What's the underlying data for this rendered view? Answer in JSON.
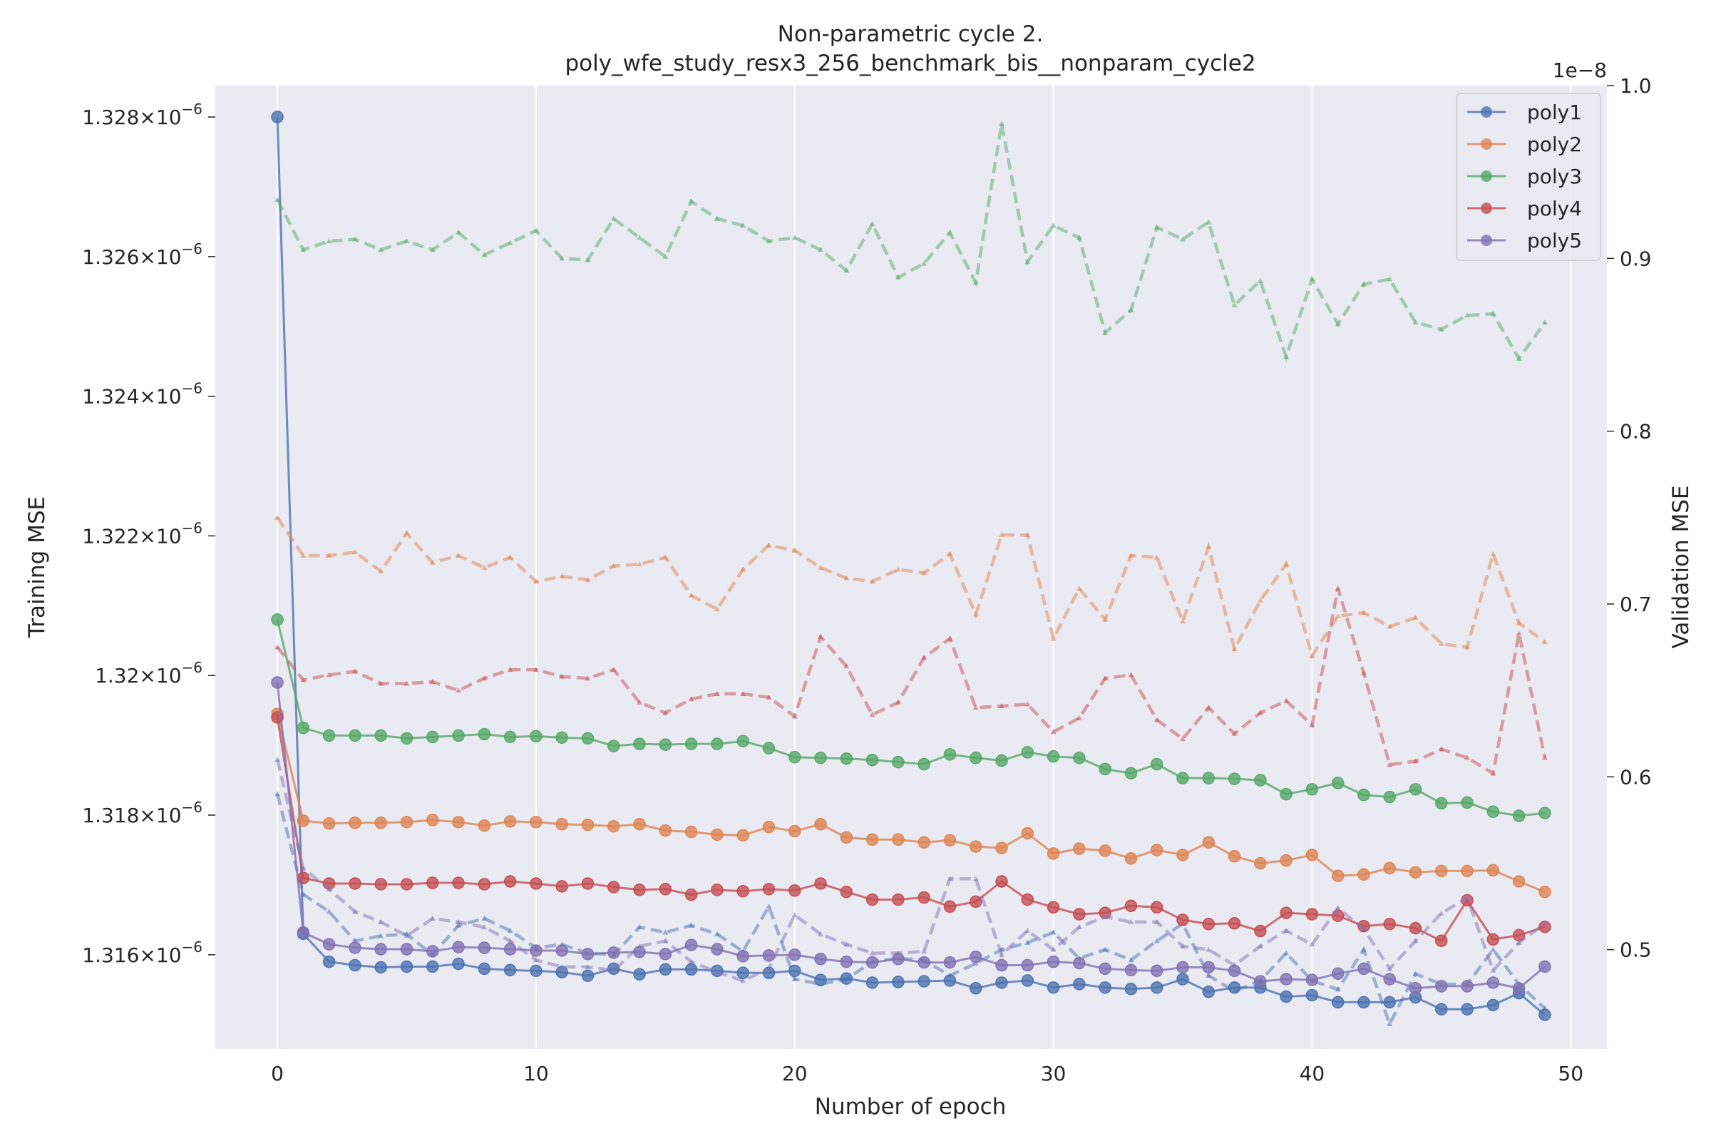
{
  "chart_data": {
    "type": "line",
    "title": "Non-parametric cycle 2.",
    "subtitle": "poly_wfe_study_resx3_256_benchmark_bis__nonparam_cycle2",
    "xlabel": "Number of epoch",
    "ylabel": "Training MSE",
    "y2label": "Validation MSE",
    "y2_offset_text": "1e−8",
    "xlim": [
      -2.4,
      51.4
    ],
    "ylim": [
      1.31465e-06,
      1.32845e-06
    ],
    "y2lim": [
      0.4425,
      1.0
    ],
    "grid": true,
    "legend_position": "top-right",
    "x_ticks": [
      0,
      10,
      20,
      30,
      40,
      50
    ],
    "x_tick_labels": [
      "0",
      "10",
      "20",
      "30",
      "40",
      "50"
    ],
    "y_ticks": [
      {
        "value": 1.316e-06,
        "mant": "1.316",
        "exp": "−6"
      },
      {
        "value": 1.318e-06,
        "mant": "1.318",
        "exp": "−6"
      },
      {
        "value": 1.32e-06,
        "mant": "1.32",
        "exp": "−6"
      },
      {
        "value": 1.322e-06,
        "mant": "1.322",
        "exp": "−6"
      },
      {
        "value": 1.324e-06,
        "mant": "1.324",
        "exp": "−6"
      },
      {
        "value": 1.326e-06,
        "mant": "1.326",
        "exp": "−6"
      },
      {
        "value": 1.328e-06,
        "mant": "1.328",
        "exp": "−6"
      }
    ],
    "y_tick_times": "×10",
    "y2_ticks": [
      0.5,
      0.6,
      0.7,
      0.8,
      0.9,
      1.0
    ],
    "y2_tick_labels": [
      "0.5",
      "0.6",
      "0.7",
      "0.8",
      "0.9",
      "1.0"
    ],
    "x": [
      0,
      1,
      2,
      3,
      4,
      5,
      6,
      7,
      8,
      9,
      10,
      11,
      12,
      13,
      14,
      15,
      16,
      17,
      18,
      19,
      20,
      21,
      22,
      23,
      24,
      25,
      26,
      27,
      28,
      29,
      30,
      31,
      32,
      33,
      34,
      35,
      36,
      37,
      38,
      39,
      40,
      41,
      42,
      43,
      44,
      45,
      46,
      47,
      48,
      49
    ],
    "series": [
      {
        "name": "poly1",
        "color": "#4c72b0",
        "train": [
          1.328,
          1.3163,
          1.3159,
          1.31585,
          1.31582,
          1.31583,
          1.31583,
          1.31587,
          1.3158,
          1.31578,
          1.31577,
          1.31575,
          1.3157,
          1.3158,
          1.31572,
          1.31579,
          1.31579,
          1.31577,
          1.31574,
          1.31574,
          1.31577,
          1.31564,
          1.31566,
          1.3156,
          1.31561,
          1.31562,
          1.31563,
          1.31552,
          1.3156,
          1.31563,
          1.31553,
          1.31558,
          1.31553,
          1.31551,
          1.31553,
          1.31565,
          1.31547,
          1.31553,
          1.31553,
          1.3154,
          1.31542,
          1.31532,
          1.31532,
          1.31532,
          1.31539,
          1.31522,
          1.31522,
          1.31528,
          1.31545,
          1.31514
        ],
        "val": [
          0.59,
          0.532,
          0.522,
          0.505,
          0.508,
          0.509,
          0.497,
          0.514,
          0.518,
          0.511,
          0.501,
          0.503,
          0.498,
          0.497,
          0.513,
          0.51,
          0.514,
          0.509,
          0.499,
          0.525,
          0.483,
          0.48,
          0.483,
          0.493,
          0.495,
          0.494,
          0.485,
          0.492,
          0.5,
          0.504,
          0.51,
          0.495,
          0.5,
          0.494,
          0.505,
          0.515,
          0.485,
          0.476,
          0.482,
          0.498,
          0.482,
          0.477,
          0.5,
          0.457,
          0.486,
          0.48,
          0.48,
          0.5,
          0.48,
          0.466
        ]
      },
      {
        "name": "poly2",
        "color": "#dd8452",
        "train": [
          1.31945,
          1.31792,
          1.31788,
          1.31789,
          1.31789,
          1.3179,
          1.31793,
          1.3179,
          1.31785,
          1.31791,
          1.3179,
          1.31787,
          1.31786,
          1.31784,
          1.31787,
          1.31778,
          1.31776,
          1.31772,
          1.31771,
          1.31783,
          1.31777,
          1.31787,
          1.31768,
          1.31765,
          1.31765,
          1.31761,
          1.31764,
          1.31755,
          1.31753,
          1.31774,
          1.31745,
          1.31752,
          1.31749,
          1.31738,
          1.3175,
          1.31743,
          1.31761,
          1.31741,
          1.31731,
          1.31735,
          1.31743,
          1.31713,
          1.31715,
          1.31724,
          1.31718,
          1.3172,
          1.3172,
          1.31721,
          1.31705,
          1.3169
        ],
        "val": [
          0.75,
          0.728,
          0.728,
          0.73,
          0.719,
          0.741,
          0.724,
          0.728,
          0.721,
          0.727,
          0.713,
          0.716,
          0.714,
          0.722,
          0.723,
          0.727,
          0.705,
          0.697,
          0.72,
          0.734,
          0.731,
          0.721,
          0.715,
          0.713,
          0.72,
          0.718,
          0.729,
          0.694,
          0.74,
          0.74,
          0.68,
          0.709,
          0.691,
          0.728,
          0.727,
          0.69,
          0.733,
          0.674,
          0.702,
          0.723,
          0.67,
          0.693,
          0.695,
          0.687,
          0.692,
          0.677,
          0.675,
          0.729,
          0.689,
          0.678
        ]
      },
      {
        "name": "poly3",
        "color": "#55a868",
        "train": [
          1.3208,
          1.31925,
          1.31914,
          1.31914,
          1.31914,
          1.3191,
          1.31912,
          1.31914,
          1.31916,
          1.31912,
          1.31913,
          1.31911,
          1.3191,
          1.31899,
          1.31902,
          1.31901,
          1.31902,
          1.31902,
          1.31906,
          1.31896,
          1.31883,
          1.31882,
          1.31881,
          1.31879,
          1.31876,
          1.31873,
          1.31887,
          1.31882,
          1.31878,
          1.3189,
          1.31884,
          1.31882,
          1.31866,
          1.3186,
          1.31873,
          1.31853,
          1.31853,
          1.31852,
          1.3185,
          1.3183,
          1.31837,
          1.31846,
          1.31829,
          1.31826,
          1.31837,
          1.31817,
          1.31818,
          1.31805,
          1.31799,
          1.31803
        ],
        "val": [
          0.934,
          0.905,
          0.91,
          0.911,
          0.905,
          0.91,
          0.905,
          0.915,
          0.902,
          0.909,
          0.916,
          0.9,
          0.899,
          0.923,
          0.912,
          0.901,
          0.933,
          0.923,
          0.919,
          0.91,
          0.912,
          0.905,
          0.893,
          0.92,
          0.889,
          0.897,
          0.915,
          0.886,
          0.978,
          0.898,
          0.919,
          0.912,
          0.857,
          0.87,
          0.918,
          0.911,
          0.921,
          0.873,
          0.887,
          0.843,
          0.888,
          0.862,
          0.885,
          0.888,
          0.863,
          0.859,
          0.867,
          0.868,
          0.842,
          0.863
        ]
      },
      {
        "name": "poly4",
        "color": "#c44e52",
        "train": [
          1.3194,
          1.3171,
          1.31702,
          1.31702,
          1.31701,
          1.31701,
          1.31703,
          1.31703,
          1.31701,
          1.31705,
          1.31702,
          1.31698,
          1.31702,
          1.31697,
          1.31693,
          1.31694,
          1.31686,
          1.31693,
          1.31691,
          1.31694,
          1.31692,
          1.31702,
          1.3169,
          1.31679,
          1.31679,
          1.31682,
          1.31669,
          1.31676,
          1.31705,
          1.31679,
          1.31668,
          1.31658,
          1.3166,
          1.3167,
          1.31668,
          1.3165,
          1.31644,
          1.31645,
          1.31634,
          1.3166,
          1.31658,
          1.31656,
          1.31641,
          1.31644,
          1.31638,
          1.3162,
          1.31678,
          1.31622,
          1.31628,
          1.3164
        ],
        "val": [
          0.675,
          0.656,
          0.659,
          0.661,
          0.654,
          0.654,
          0.655,
          0.65,
          0.657,
          0.662,
          0.662,
          0.658,
          0.657,
          0.662,
          0.643,
          0.637,
          0.645,
          0.648,
          0.648,
          0.646,
          0.635,
          0.681,
          0.664,
          0.636,
          0.643,
          0.669,
          0.68,
          0.64,
          0.641,
          0.642,
          0.626,
          0.634,
          0.657,
          0.659,
          0.633,
          0.622,
          0.64,
          0.625,
          0.637,
          0.644,
          0.63,
          0.709,
          0.66,
          0.607,
          0.609,
          0.616,
          0.611,
          0.602,
          0.683,
          0.611
        ]
      },
      {
        "name": "poly5",
        "color": "#8172b3",
        "train": [
          1.3199,
          1.31632,
          1.31615,
          1.3161,
          1.31608,
          1.31608,
          1.31605,
          1.31611,
          1.3161,
          1.31608,
          1.31606,
          1.31606,
          1.31601,
          1.31603,
          1.31604,
          1.31601,
          1.31614,
          1.31608,
          1.31598,
          1.31599,
          1.316,
          1.31594,
          1.3159,
          1.31589,
          1.31594,
          1.31589,
          1.31589,
          1.31597,
          1.31585,
          1.31585,
          1.3159,
          1.31588,
          1.3158,
          1.31578,
          1.31577,
          1.31582,
          1.31582,
          1.31577,
          1.31562,
          1.31565,
          1.31564,
          1.31573,
          1.3158,
          1.31565,
          1.31552,
          1.31555,
          1.31555,
          1.3156,
          1.31552,
          1.31583
        ],
        "val": [
          0.61,
          0.547,
          0.535,
          0.522,
          0.516,
          0.508,
          0.518,
          0.516,
          0.513,
          0.505,
          0.494,
          0.49,
          0.49,
          0.488,
          0.502,
          0.505,
          0.493,
          0.487,
          0.482,
          0.489,
          0.52,
          0.509,
          0.503,
          0.498,
          0.498,
          0.499,
          0.541,
          0.541,
          0.497,
          0.511,
          0.5,
          0.513,
          0.519,
          0.516,
          0.516,
          0.502,
          0.5,
          0.491,
          0.502,
          0.511,
          0.503,
          0.524,
          0.512,
          0.489,
          0.505,
          0.521,
          0.53,
          0.488,
          0.504,
          0.515
        ]
      }
    ]
  }
}
